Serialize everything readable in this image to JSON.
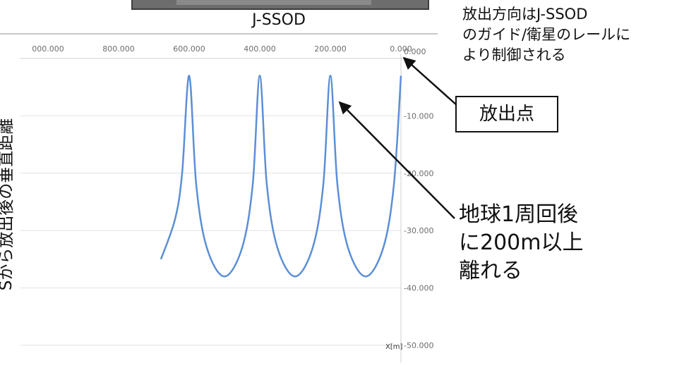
{
  "device": {
    "label": "J-SSOD"
  },
  "annotations": {
    "direction_note": "放出方向はJ-SSOD\nのガイド/衛星のレールに\nより制御される",
    "release_point": "放出点",
    "result_note": "地球1周回後\nに200m以上\n離れる"
  },
  "chart_data": {
    "type": "line",
    "title": "",
    "xlabel": "X[m]",
    "ylabel": "Sから放出後の垂直距離",
    "x_ticks": [
      "000.000",
      "800.000",
      "600.000",
      "400.000",
      "200.000",
      "0.000"
    ],
    "y_ticks": [
      "0.000",
      "-10.000",
      "-20.000",
      "-30.000",
      "-40.000",
      "-50.000"
    ],
    "xlim": [
      1000,
      0
    ],
    "ylim": [
      -50,
      0
    ],
    "grid": true,
    "line_color": "#5b8fd6",
    "series": [
      {
        "values": [
          {
            "x": 0,
            "y": -3
          },
          {
            "x": 20,
            "y": -22
          },
          {
            "x": 50,
            "y": -33
          },
          {
            "x": 100,
            "y": -38
          },
          {
            "x": 150,
            "y": -33
          },
          {
            "x": 180,
            "y": -22
          },
          {
            "x": 200,
            "y": -3
          },
          {
            "x": 220,
            "y": -22
          },
          {
            "x": 250,
            "y": -33
          },
          {
            "x": 300,
            "y": -38
          },
          {
            "x": 350,
            "y": -33
          },
          {
            "x": 380,
            "y": -22
          },
          {
            "x": 400,
            "y": -3
          },
          {
            "x": 420,
            "y": -22
          },
          {
            "x": 450,
            "y": -33
          },
          {
            "x": 500,
            "y": -38
          },
          {
            "x": 550,
            "y": -33
          },
          {
            "x": 580,
            "y": -22
          },
          {
            "x": 600,
            "y": -3
          },
          {
            "x": 620,
            "y": -20
          },
          {
            "x": 640,
            "y": -28
          },
          {
            "x": 680,
            "y": -35
          }
        ]
      }
    ]
  }
}
